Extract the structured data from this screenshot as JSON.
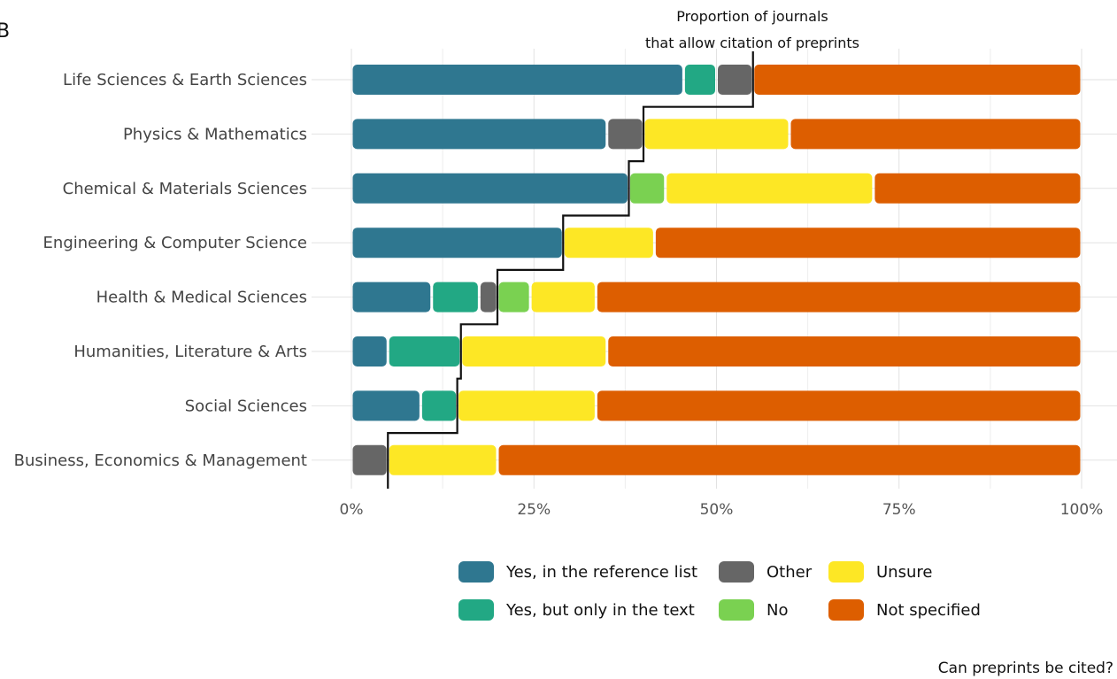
{
  "chart_data": {
    "type": "bar",
    "stacked": true,
    "orientation": "horizontal",
    "panel_label": "B",
    "categories": [
      "Life Sciences & Earth Sciences",
      "Physics & Mathematics",
      "Chemical & Materials Sciences",
      "Engineering & Computer Science",
      "Health & Medical Sciences",
      "Humanities, Literature & Arts",
      "Social Sciences",
      "Business, Economics & Management"
    ],
    "series": [
      {
        "name": "Yes, in the reference list",
        "color": "#2f7790",
        "values": [
          45.5,
          35,
          38,
          29,
          11,
          5,
          9.5,
          0
        ]
      },
      {
        "name": "Yes, but only in the text",
        "color": "#22a884",
        "values": [
          4.5,
          0,
          0,
          0,
          6.5,
          10,
          5,
          0
        ]
      },
      {
        "name": "Other",
        "color": "#666666",
        "values": [
          5,
          5,
          0,
          0,
          2.5,
          0,
          0,
          5
        ]
      },
      {
        "name": "No",
        "color": "#7ad151",
        "values": [
          0,
          0,
          5,
          0,
          4.5,
          0,
          0,
          0
        ]
      },
      {
        "name": "Unsure",
        "color": "#fde725",
        "values": [
          0,
          20,
          28.5,
          12.5,
          9,
          20,
          19,
          15
        ]
      },
      {
        "name": "Not specified",
        "color": "#dd5e00",
        "values": [
          45,
          40,
          28.5,
          58.5,
          66.5,
          65,
          66.5,
          80
        ]
      }
    ],
    "x_ticks": [
      "0%",
      "25%",
      "50%",
      "75%",
      "100%"
    ],
    "xlim": [
      0,
      100
    ],
    "step_line": {
      "label_line1": "Proportion of journals",
      "label_line2": "that allow citation of preprints",
      "values": [
        55,
        40,
        38,
        29,
        20,
        15,
        14.5,
        5
      ]
    },
    "legend_title": "Can preprints be cited?",
    "legend_position": "bottom",
    "legend_layout": [
      [
        "Yes, in the reference list",
        "Other",
        "Unsure"
      ],
      [
        "Yes, but only in the text",
        "No",
        "Not specified"
      ]
    ],
    "grid": true
  }
}
